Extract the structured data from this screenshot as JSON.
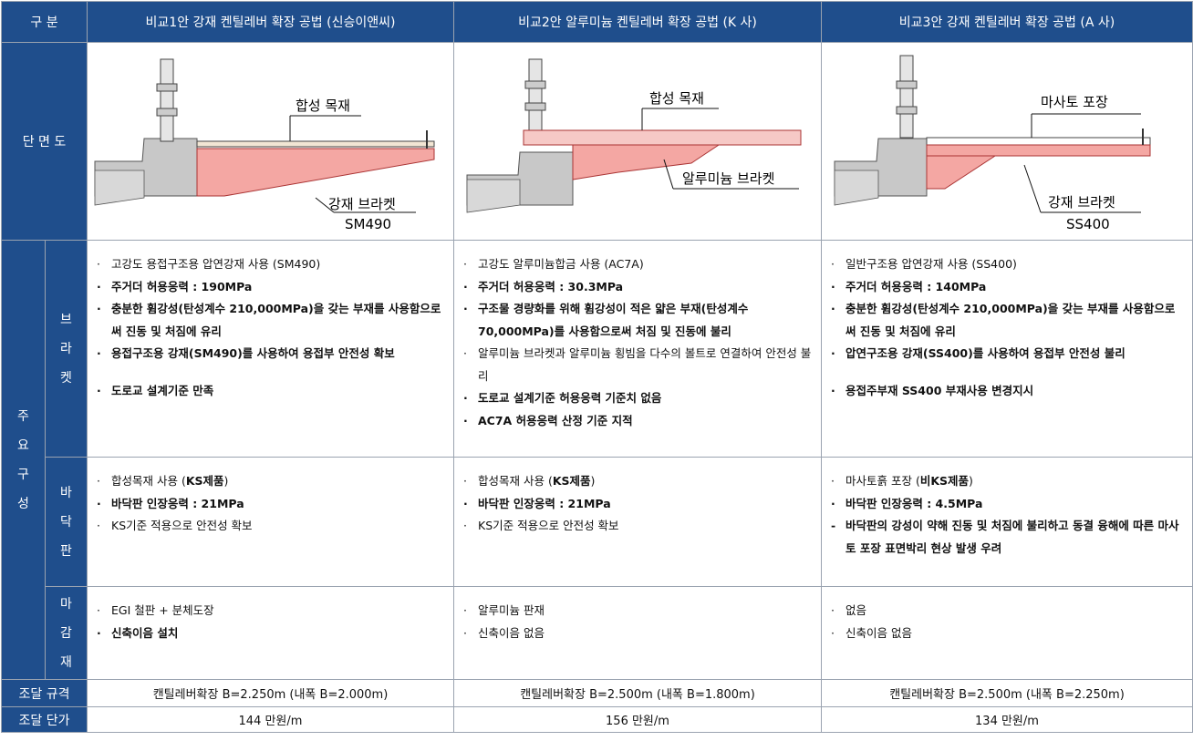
{
  "header": {
    "category": "구 분",
    "col1": "비교1안 강재 켄틸레버 확장 공법 (신승이앤씨)",
    "col2": "비교2안 알루미늄 켄틸레버 확장 공법 (K 사)",
    "col3": "비교3안 강재 켄틸레버 확장 공법 (A 사)"
  },
  "section_labels": {
    "cross_section": "단 면 도",
    "main_composition": [
      "주",
      "요",
      "구",
      "성"
    ],
    "bracket": [
      "브",
      "라",
      "켓"
    ],
    "deck": [
      "바",
      "닥",
      "판"
    ],
    "finish": [
      "마",
      "감",
      "재"
    ],
    "spec": "조달 규격",
    "price": "조달 단가"
  },
  "drawings": {
    "col1": {
      "top_label": "합성 목재",
      "bottom_label": "강재 브라켓",
      "bottom_sub": "SM490"
    },
    "col2": {
      "top_label": "합성 목재",
      "bottom_label": "알루미늄 브라켓",
      "bottom_sub": ""
    },
    "col3": {
      "top_label": "마사토 포장",
      "bottom_label": "강재 브라켓",
      "bottom_sub": "SS400"
    }
  },
  "bracket": {
    "col1": [
      {
        "bullet": "·",
        "text": "고강도 용접구조용 압연강재 사용 (SM490)",
        "bold": false
      },
      {
        "bullet": "·",
        "text": "주거더 허용응력 : 190MPa",
        "bold": true
      },
      {
        "bullet": "·",
        "text": "충분한 휨강성(탄성계수 210,000MPa)을 갖는 부재를 사용함으로써 진동 및 처짐에 유리",
        "bold": true
      },
      {
        "bullet": "·",
        "text": "용접구조용 강재(SM490)를 사용하여 용접부 안전성 확보",
        "bold": true
      },
      {
        "bullet": "",
        "text": "",
        "bold": false
      },
      {
        "bullet": "·",
        "text": "도로교 설계기준 만족",
        "bold": true
      }
    ],
    "col2": [
      {
        "bullet": "·",
        "text": "고강도 알루미늄합금 사용 (AC7A)",
        "bold": false
      },
      {
        "bullet": "·",
        "text": "주거더 허용응력 : 30.3MPa",
        "bold": true
      },
      {
        "bullet": "·",
        "text": "구조물 경량화를 위해 휨강성이 적은 얇은 부재(탄성계수 70,000MPa)를 사용함으로써 처짐 및 진동에 불리",
        "bold": true
      },
      {
        "bullet": "·",
        "text": "알루미늄 브라켓과 알루미늄 횡빔을 다수의 볼트로 연결하여 안전성 불리",
        "bold": false
      },
      {
        "bullet": "·",
        "text": "도로교 설계기준 허용응력 기준치 없음",
        "bold": true
      },
      {
        "bullet": "·",
        "text": "AC7A 허용응력 산정 기준 지적",
        "bold": true
      }
    ],
    "col3": [
      {
        "bullet": "·",
        "text": "일반구조용 압연강재 사용 (SS400)",
        "bold": false
      },
      {
        "bullet": "·",
        "text": "주거더 허용응력 : 140MPa",
        "bold": true
      },
      {
        "bullet": "·",
        "text": "충분한 휨강성(탄성계수 210,000MPa)을 갖는 부재를 사용함으로써 진동 및 처짐에 유리",
        "bold": true
      },
      {
        "bullet": "·",
        "text": "압연구조용 강재(SS400)를 사용하여 용접부 안전성 불리",
        "bold": true
      },
      {
        "bullet": "",
        "text": "",
        "bold": false
      },
      {
        "bullet": "·",
        "text": "용접주부재 SS400 부재사용 변경지시",
        "bold": true
      }
    ]
  },
  "deck": {
    "col1": [
      {
        "bullet": "·",
        "text": "합성목재 사용 (KS제품)",
        "bold": false,
        "bold_part": "KS제품"
      },
      {
        "bullet": "·",
        "text": "바닥판 인장응력 :  21MPa",
        "bold": true
      },
      {
        "bullet": "·",
        "text": "KS기준 적용으로 안전성 확보",
        "bold": false
      }
    ],
    "col2": [
      {
        "bullet": "·",
        "text": "합성목재 사용 (KS제품)",
        "bold": false,
        "bold_part": "KS제품"
      },
      {
        "bullet": "·",
        "text": "바닥판 인장응력 :  21MPa",
        "bold": true
      },
      {
        "bullet": "·",
        "text": "KS기준 적용으로 안전성 확보",
        "bold": false
      }
    ],
    "col3": [
      {
        "bullet": "·",
        "text": "마사토흙 포장 (비KS제품)",
        "bold": false,
        "bold_part": "비KS제품"
      },
      {
        "bullet": "·",
        "text": "바닥판 인장응력 :  4.5MPa",
        "bold": true
      },
      {
        "bullet": "-",
        "text": "바닥판의 강성이 약해 진동 및 처짐에 불리하고 동결 융해에 따른 마사토 포장 표면박리 현상 발생 우려",
        "bold": true
      }
    ]
  },
  "finish": {
    "col1": [
      {
        "bullet": "·",
        "text": "EGI 철판 + 분체도장",
        "bold": false
      },
      {
        "bullet": "·",
        "text": "신축이음 설치",
        "bold": true
      }
    ],
    "col2": [
      {
        "bullet": "·",
        "text": "알루미늄 판재",
        "bold": false
      },
      {
        "bullet": "·",
        "text": "신축이음 없음",
        "bold": false
      }
    ],
    "col3": [
      {
        "bullet": "·",
        "text": "없음",
        "bold": false
      },
      {
        "bullet": "·",
        "text": "신축이음 없음",
        "bold": false
      }
    ]
  },
  "spec": {
    "col1": "캔틸레버확장 B=2.250m (내폭 B=2.000m)",
    "col2": "캔틸레버확장 B=2.500m (내폭 B=1.800m)",
    "col3": "캔틸레버확장 B=2.500m (내폭 B=2.250m)"
  },
  "price": {
    "col1": "144 만원/m",
    "col2": "156 만원/m",
    "col3": "134 만원/m"
  },
  "colors": {
    "header_bg": "#1f4e8c",
    "bracket_fill": "#f4a7a3",
    "concrete": "#c8c8c8"
  }
}
